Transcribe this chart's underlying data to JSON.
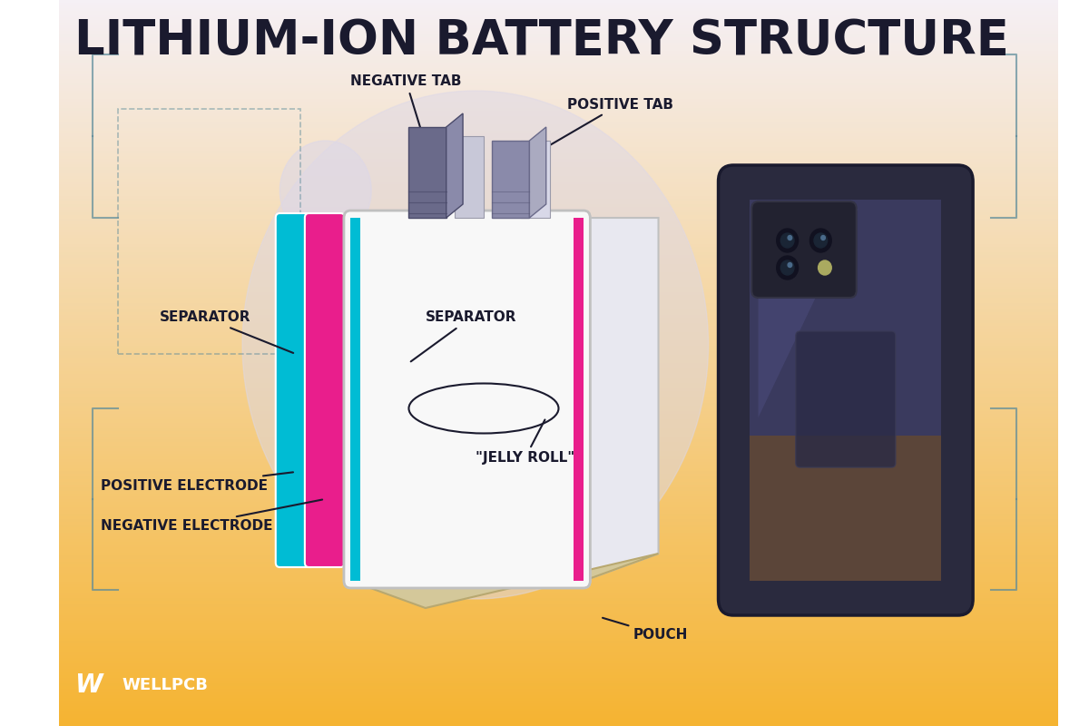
{
  "title": "LITHIUM-ION BATTERY STRUCTURE",
  "title_fontsize": 38,
  "title_color": "#1a1a2e",
  "bg_gradient_top": "#f5f0f0",
  "bg_gradient_bottom": "#f5c842",
  "labels": {
    "negative_tab": "NEGATIVE TAB",
    "positive_tab": "POSITIVE TAB",
    "separator_left": "SEPARATOR",
    "separator_right": "SEPARATOR",
    "jelly_roll": "\"JELLY ROLL\"",
    "positive_electrode": "POSITIVE ELECTRODE",
    "negative_electrode": "NEGATIVE ELECTRODE",
    "pouch": "POUCH"
  },
  "label_fontsize": 11,
  "label_color": "#1a1a2e",
  "colors": {
    "cyan_layer": "#00bcd4",
    "pink_layer": "#e91e8c",
    "white_layer": "#ffffff",
    "tab_dark": "#5a5a7a",
    "tab_light": "#c8c8d8",
    "pouch_color": "#d4a855",
    "phone_dark": "#2a2a3e",
    "circle_bg": "#ddd8e8",
    "bracket_color": "#5a8a9a"
  },
  "logo_text": "WELLPCB",
  "figsize": [
    12,
    8
  ]
}
